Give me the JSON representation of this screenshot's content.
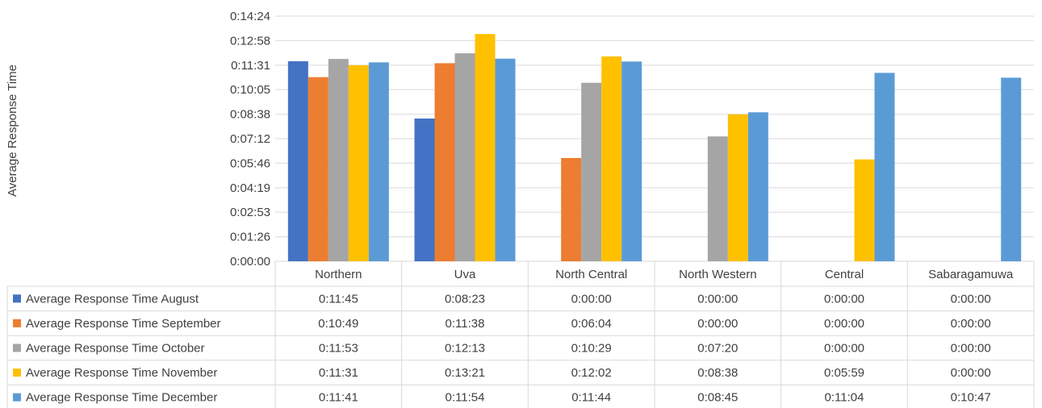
{
  "chart_data": {
    "type": "bar",
    "title": "",
    "xlabel": "",
    "ylabel": "Average Response Time",
    "categories": [
      "Northern",
      "Uva",
      "North Central",
      "North Western",
      "Central",
      "Sabaragamuwa"
    ],
    "y_ticks": [
      "0:00:00",
      "0:01:26",
      "0:02:53",
      "0:04:19",
      "0:05:46",
      "0:07:12",
      "0:08:38",
      "0:10:05",
      "0:11:31",
      "0:12:58",
      "0:14:24"
    ],
    "ylim": [
      "0:00:00",
      "0:14:24"
    ],
    "grid": true,
    "legend_placement": "data-table",
    "series": [
      {
        "name": "Average Response Time August",
        "color": "#4472C4",
        "values": [
          "0:11:45",
          "0:08:23",
          "0:00:00",
          "0:00:00",
          "0:00:00",
          "0:00:00"
        ]
      },
      {
        "name": "Average Response Time September",
        "color": "#ED7D31",
        "values": [
          "0:10:49",
          "0:11:38",
          "0:06:04",
          "0:00:00",
          "0:00:00",
          "0:00:00"
        ]
      },
      {
        "name": "Average Response Time October",
        "color": "#A5A5A5",
        "values": [
          "0:11:53",
          "0:12:13",
          "0:10:29",
          "0:07:20",
          "0:00:00",
          "0:00:00"
        ]
      },
      {
        "name": "Average Response Time November",
        "color": "#FFC000",
        "values": [
          "0:11:31",
          "0:13:21",
          "0:12:02",
          "0:08:38",
          "0:05:59",
          "0:00:00"
        ]
      },
      {
        "name": "Average Response Time December",
        "color": "#5B9BD5",
        "values": [
          "0:11:41",
          "0:11:54",
          "0:11:44",
          "0:08:45",
          "0:11:04",
          "0:10:47"
        ]
      }
    ]
  }
}
